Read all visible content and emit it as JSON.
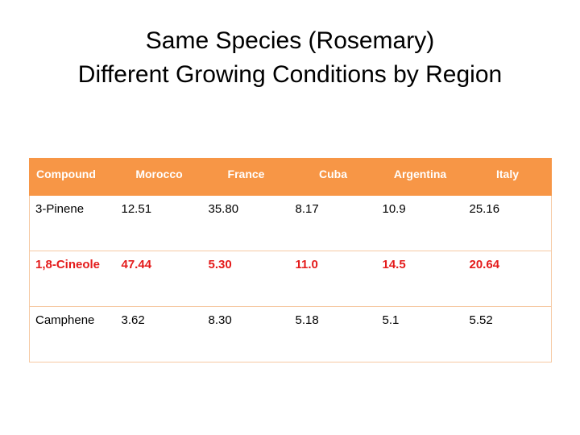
{
  "colors": {
    "header_bg": "#f79646",
    "header_text": "#ffffff",
    "highlight_text": "#e41b1b",
    "body_text": "#000000",
    "border": "#f6c9a3"
  },
  "slide": {
    "title_line1": "Same Species (Rosemary)",
    "title_line2": "Different Growing Conditions by Region"
  },
  "table": {
    "headers": [
      "Compound",
      "Morocco",
      "France",
      "Cuba",
      "Argentina",
      "Italy"
    ],
    "rows": [
      {
        "cells": [
          "3-Pinene",
          "12.51",
          "35.80",
          "8.17",
          "10.9",
          "25.16"
        ],
        "highlight": false
      },
      {
        "cells": [
          "1,8-Cineole",
          "47.44",
          "5.30",
          "11.0",
          "14.5",
          "20.64"
        ],
        "highlight": true
      },
      {
        "cells": [
          "Camphene",
          "3.62",
          "8.30",
          "5.18",
          "5.1",
          "5.52"
        ],
        "highlight": false
      }
    ]
  }
}
